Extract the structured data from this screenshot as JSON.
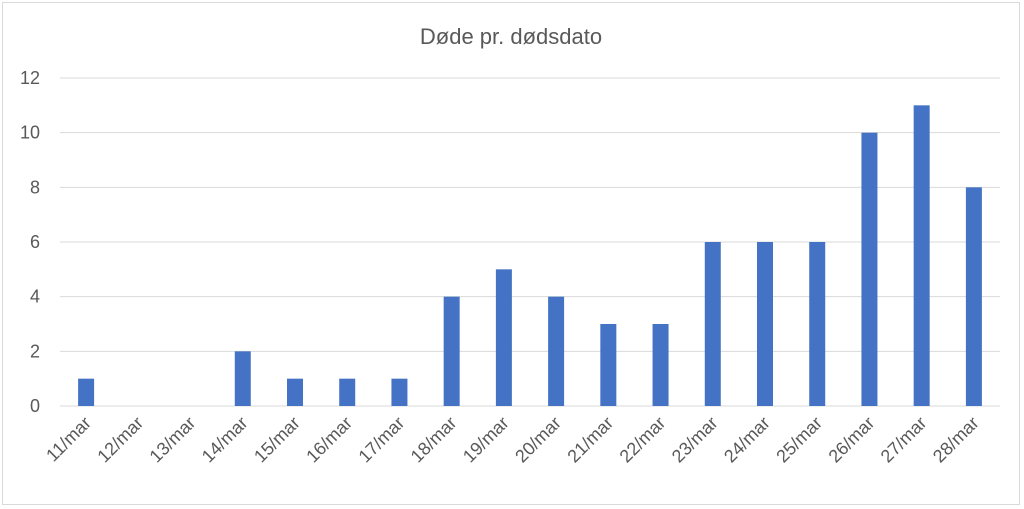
{
  "chart_data": {
    "type": "bar",
    "title": "Døde pr. dødsdato",
    "xlabel": "",
    "ylabel": "",
    "ylim": [
      0,
      12
    ],
    "yticks": [
      "0",
      "2",
      "4",
      "6",
      "8",
      "10",
      "12"
    ],
    "grid": true,
    "categories": [
      "11/mar",
      "12/mar",
      "13/mar",
      "14/mar",
      "15/mar",
      "16/mar",
      "17/mar",
      "18/mar",
      "19/mar",
      "20/mar",
      "21/mar",
      "22/mar",
      "23/mar",
      "24/mar",
      "25/mar",
      "26/mar",
      "27/mar",
      "28/mar"
    ],
    "values": [
      1,
      0,
      0,
      2,
      1,
      1,
      1,
      4,
      5,
      4,
      3,
      3,
      6,
      6,
      6,
      10,
      11,
      8
    ],
    "bar_color": "#4472c4"
  }
}
